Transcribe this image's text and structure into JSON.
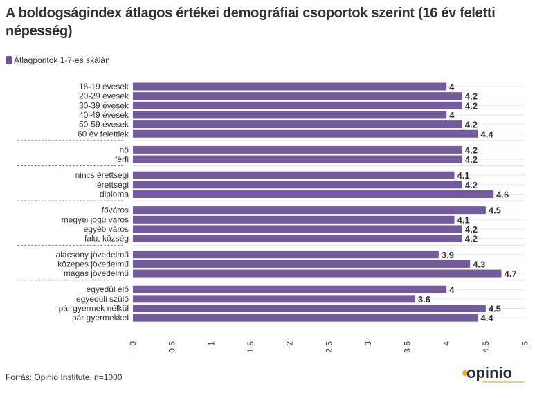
{
  "title": "A boldogságindex átlagos értékei demográfiai csoportok szerint (16 év feletti népesség)",
  "source": "Forrás: Opinio Institute, n=1000",
  "logo_text": "opinio",
  "colors": {
    "bar": "#735c9e",
    "accent": "#f5a623"
  },
  "chart_data": {
    "type": "bar",
    "orientation": "horizontal",
    "title": "A boldogságindex átlagos értékei demográfiai csoportok szerint (16 év feletti népesség)",
    "legend": {
      "placement": "top-left",
      "entries": [
        "Átlagpontok 1-7-es skálán"
      ]
    },
    "xlim": [
      0,
      5
    ],
    "ticks": [
      "0",
      "0.5",
      "1",
      "1.5",
      "2",
      "2.5",
      "3",
      "3.5",
      "4",
      "4.5",
      "5"
    ],
    "tick_values": [
      0,
      0.5,
      1,
      1.5,
      2,
      2.5,
      3,
      3.5,
      4,
      4.5,
      5
    ],
    "grid": true,
    "groups": [
      {
        "categories": [
          "16-19 évesek",
          "20-29 évesek",
          "30-39 évesek",
          "40-49 évesek",
          "50-59 évesek",
          "60 év felettiek"
        ],
        "values": [
          4,
          4.2,
          4.2,
          4,
          4.2,
          4.4
        ]
      },
      {
        "categories": [
          "nő",
          "férfi"
        ],
        "values": [
          4.2,
          4.2
        ]
      },
      {
        "categories": [
          "nincs érettségi",
          "érettségi",
          "diploma"
        ],
        "values": [
          4.1,
          4.2,
          4.6
        ]
      },
      {
        "categories": [
          "főváros",
          "megyei jogú város",
          "egyéb város",
          "falu, község"
        ],
        "values": [
          4.5,
          4.1,
          4.2,
          4.2
        ]
      },
      {
        "categories": [
          "alacsony jövedelmű",
          "közepes jövedelmű",
          "magas jövedelmű"
        ],
        "values": [
          3.9,
          4.3,
          4.7
        ]
      },
      {
        "categories": [
          "egyedül élő",
          "egyedüli szülő",
          "pár gyermek nélkül",
          "pár gyermekkel"
        ],
        "values": [
          4,
          3.6,
          4.5,
          4.4
        ]
      }
    ],
    "series": [
      {
        "name": "Átlagpontok 1-7-es skálán"
      }
    ]
  }
}
